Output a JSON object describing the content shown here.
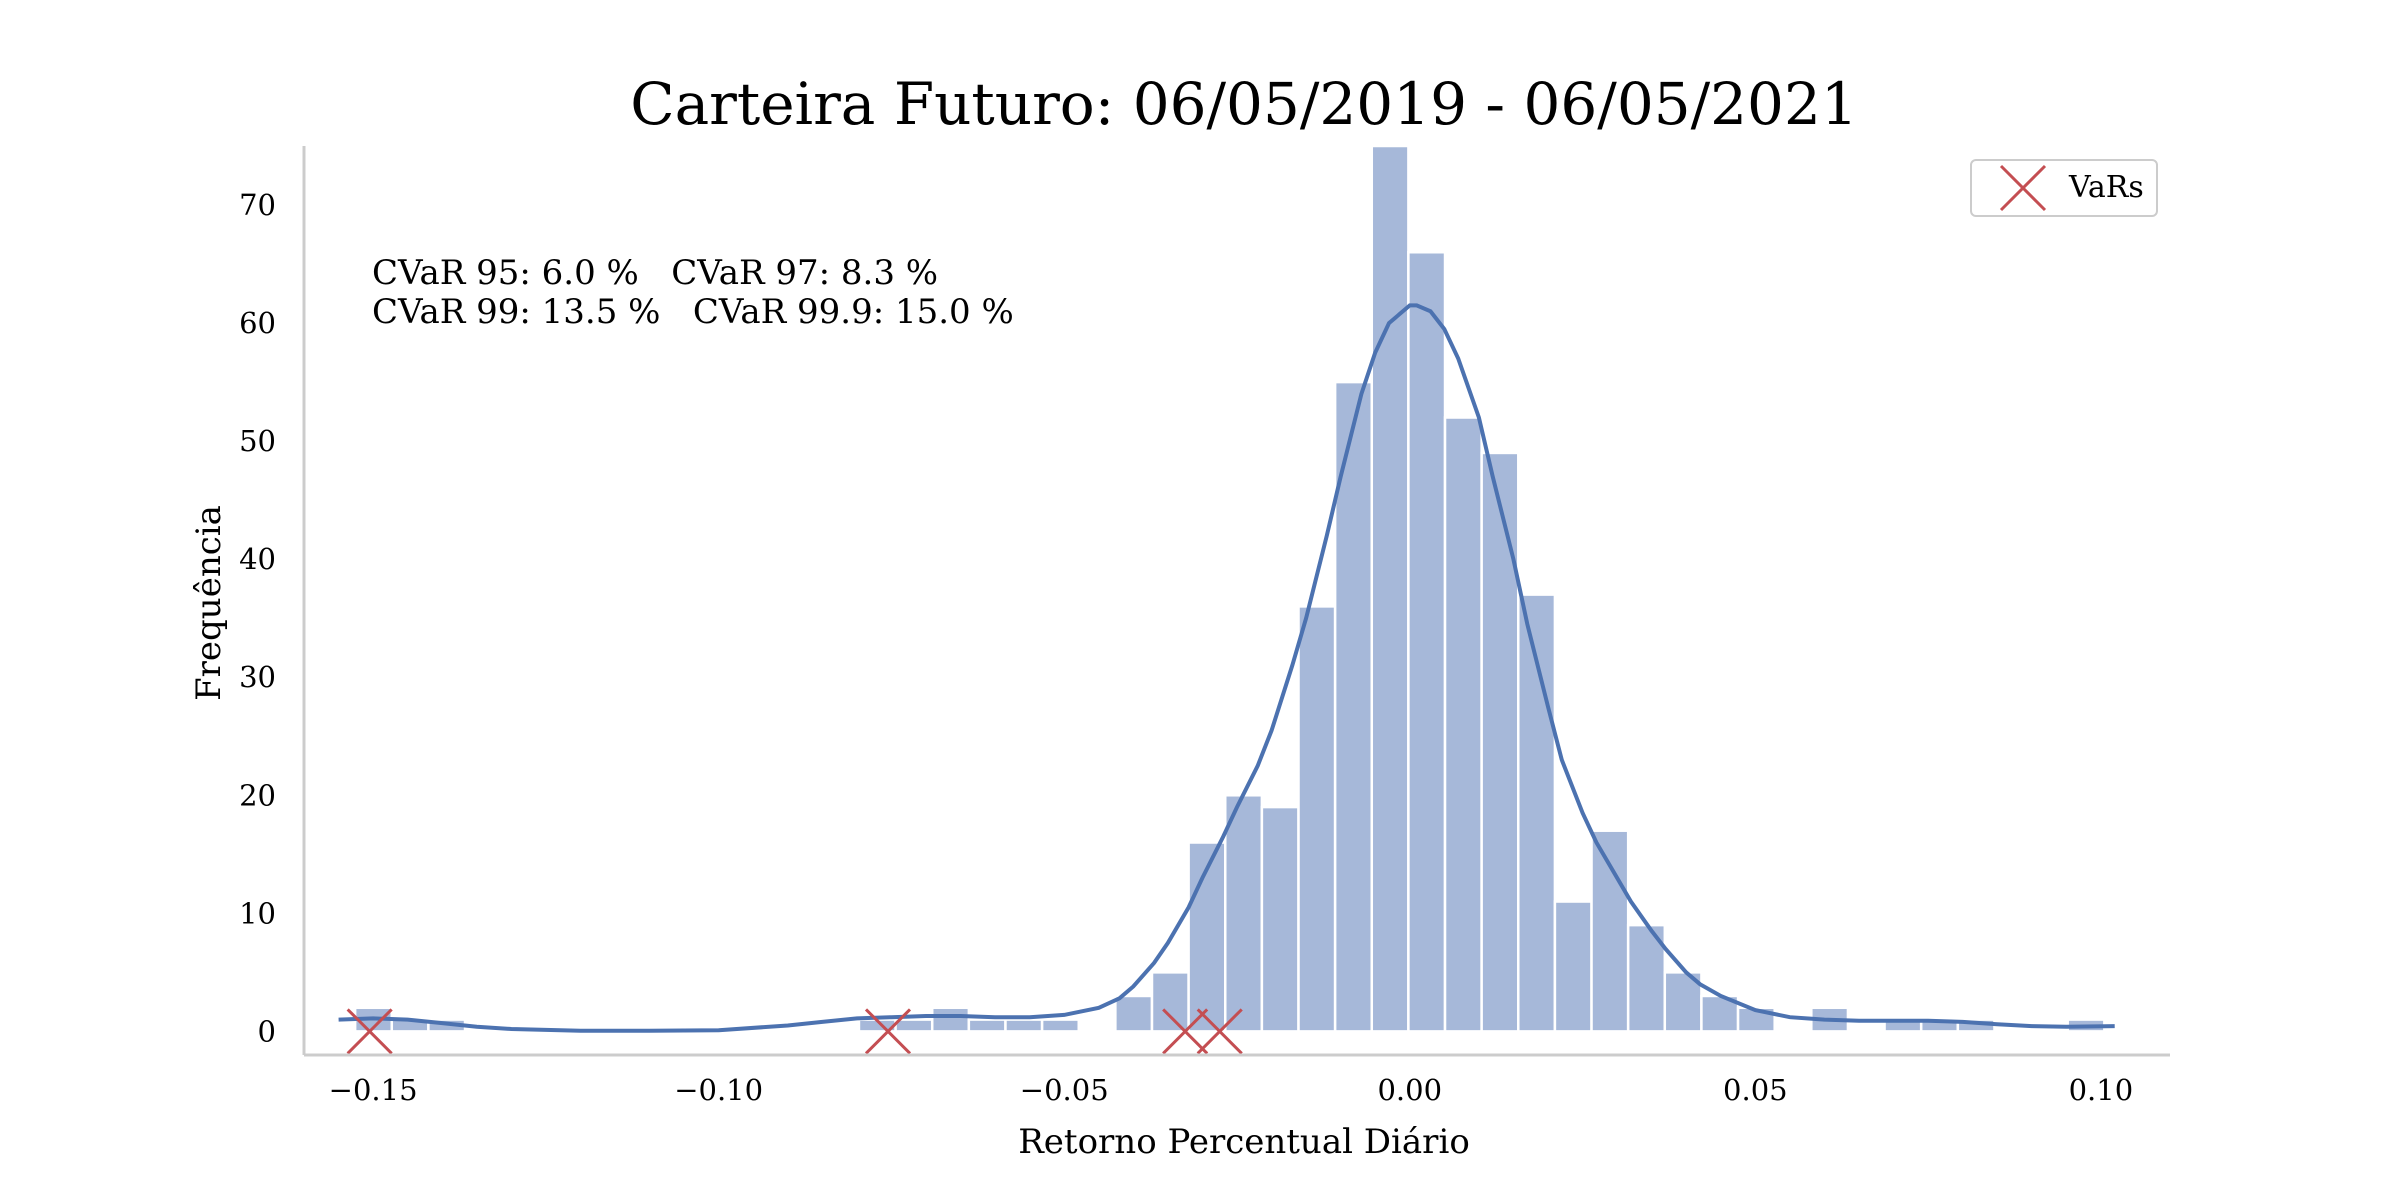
{
  "chart_data": {
    "type": "bar",
    "title": "Carteira Futuro: 06/05/2019 - 06/05/2021",
    "xlabel": "Retorno Percentual Diário",
    "ylabel": "Frequência",
    "xlim": [
      -0.16,
      0.11
    ],
    "ylim": [
      -2,
      75
    ],
    "x_ticks": [
      -0.15,
      -0.1,
      -0.05,
      0.0,
      0.05,
      0.1
    ],
    "x_tick_labels": [
      "−0.15",
      "−0.10",
      "−0.05",
      "0.00",
      "0.05",
      "0.10"
    ],
    "y_ticks": [
      0,
      10,
      20,
      30,
      40,
      50,
      60,
      70
    ],
    "y_tick_labels": [
      "0",
      "10",
      "20",
      "30",
      "40",
      "50",
      "60",
      "70"
    ],
    "grid": false,
    "bin_width": 0.0053,
    "bins": [
      {
        "x": -0.1526,
        "count": 2
      },
      {
        "x": -0.1473,
        "count": 1
      },
      {
        "x": -0.142,
        "count": 1
      },
      {
        "x": -0.0797,
        "count": 1
      },
      {
        "x": -0.0744,
        "count": 1
      },
      {
        "x": -0.0691,
        "count": 2
      },
      {
        "x": -0.0638,
        "count": 1
      },
      {
        "x": -0.0585,
        "count": 1
      },
      {
        "x": -0.0532,
        "count": 1
      },
      {
        "x": -0.0426,
        "count": 3
      },
      {
        "x": -0.0373,
        "count": 5
      },
      {
        "x": -0.032,
        "count": 16
      },
      {
        "x": -0.0267,
        "count": 20
      },
      {
        "x": -0.0214,
        "count": 19
      },
      {
        "x": -0.0161,
        "count": 36
      },
      {
        "x": -0.0108,
        "count": 55
      },
      {
        "x": -0.0055,
        "count": 75
      },
      {
        "x": -0.0002,
        "count": 66
      },
      {
        "x": 0.0051,
        "count": 52
      },
      {
        "x": 0.0104,
        "count": 49
      },
      {
        "x": 0.0157,
        "count": 37
      },
      {
        "x": 0.021,
        "count": 11
      },
      {
        "x": 0.0263,
        "count": 17
      },
      {
        "x": 0.0316,
        "count": 9
      },
      {
        "x": 0.0369,
        "count": 5
      },
      {
        "x": 0.0422,
        "count": 3
      },
      {
        "x": 0.0475,
        "count": 2
      },
      {
        "x": 0.0581,
        "count": 2
      },
      {
        "x": 0.0687,
        "count": 1
      },
      {
        "x": 0.074,
        "count": 1
      },
      {
        "x": 0.0793,
        "count": 1
      },
      {
        "x": 0.0952,
        "count": 1
      }
    ],
    "kde": {
      "x": [
        -0.155,
        -0.15,
        -0.145,
        -0.14,
        -0.135,
        -0.13,
        -0.12,
        -0.11,
        -0.1,
        -0.09,
        -0.085,
        -0.08,
        -0.075,
        -0.07,
        -0.065,
        -0.06,
        -0.055,
        -0.05,
        -0.045,
        -0.042,
        -0.04,
        -0.037,
        -0.035,
        -0.032,
        -0.03,
        -0.027,
        -0.025,
        -0.022,
        -0.02,
        -0.017,
        -0.015,
        -0.012,
        -0.01,
        -0.007,
        -0.005,
        -0.003,
        0.0,
        0.001,
        0.003,
        0.005,
        0.007,
        0.01,
        0.012,
        0.015,
        0.017,
        0.02,
        0.022,
        0.025,
        0.027,
        0.03,
        0.032,
        0.035,
        0.037,
        0.04,
        0.042,
        0.045,
        0.05,
        0.055,
        0.06,
        0.065,
        0.07,
        0.075,
        0.08,
        0.085,
        0.09,
        0.095,
        0.102
      ],
      "y": [
        1.0,
        1.1,
        1.0,
        0.7,
        0.4,
        0.2,
        0.05,
        0.05,
        0.1,
        0.5,
        0.8,
        1.1,
        1.2,
        1.3,
        1.3,
        1.2,
        1.2,
        1.4,
        2.0,
        2.8,
        3.8,
        5.8,
        7.5,
        10.5,
        13.0,
        16.5,
        19.0,
        22.5,
        25.5,
        31.0,
        35.0,
        42.0,
        47.0,
        54.0,
        57.5,
        60.0,
        61.5,
        61.5,
        61.0,
        59.5,
        57.0,
        52.0,
        47.0,
        40.0,
        34.5,
        27.5,
        23.0,
        18.5,
        16.0,
        13.0,
        11.0,
        8.5,
        7.0,
        5.0,
        4.0,
        3.0,
        1.8,
        1.2,
        1.0,
        0.9,
        0.9,
        0.9,
        0.8,
        0.6,
        0.45,
        0.4,
        0.45
      ]
    },
    "vars": {
      "name": "VaRs",
      "x": [
        -0.1505,
        -0.0755,
        -0.0325,
        -0.0275
      ],
      "y": [
        0,
        0,
        0,
        0
      ]
    },
    "annotation_lines": [
      "CVaR 95: 6.0 %   CVaR 97: 8.3 %",
      "CVaR 99: 13.5 %   CVaR 99.9: 15.0 %"
    ],
    "legend": {
      "entries": [
        "VaRs"
      ],
      "placement": "top-right"
    },
    "colors": {
      "bars": "#a6b8d9",
      "kde": "#4c72b0",
      "vars": "#c44e52",
      "axis": "#cccccc"
    }
  }
}
